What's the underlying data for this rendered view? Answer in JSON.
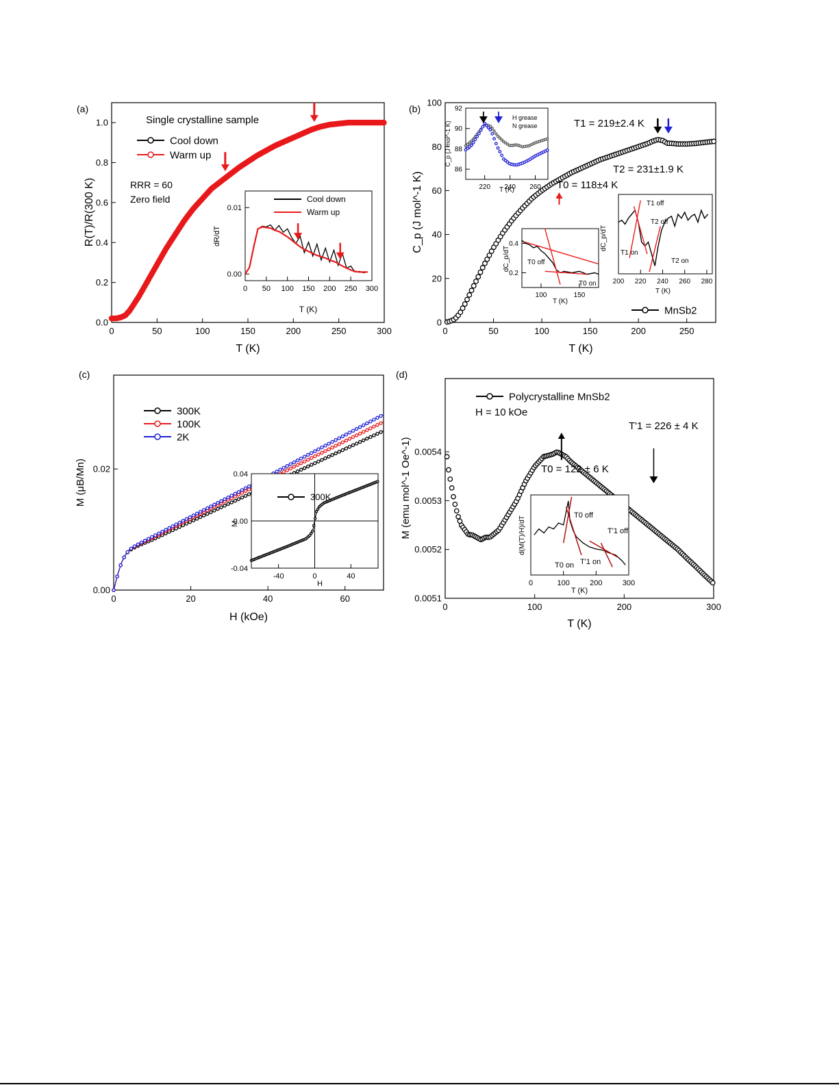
{
  "colors": {
    "black": "#000000",
    "red": "#e8191b",
    "blue": "#1f1fd6",
    "darkred": "#b01010"
  },
  "chart_data": [
    {
      "panel": "(a)",
      "type": "line",
      "title": "Single crystalline sample",
      "xlabel": "T (K)",
      "ylabel": "R(T)/R(300 K)",
      "xlim": [
        0,
        300
      ],
      "ylim": [
        0,
        1.1
      ],
      "xticks": [
        "0",
        "50",
        "100",
        "150",
        "200",
        "250",
        "300"
      ],
      "yticks": [
        "0.0",
        "0.2",
        "0.4",
        "0.6",
        "0.8",
        "1.0"
      ],
      "legend": [
        "Cool down",
        "Warm up"
      ],
      "annotations": [
        "RRR = 60",
        "Zero field"
      ],
      "arrows_T": [
        125,
        223
      ],
      "series": [
        {
          "name": "Cool down",
          "color": "#000000",
          "x": [
            0,
            5,
            10,
            15,
            20,
            30,
            40,
            50,
            60,
            70,
            80,
            90,
            100,
            110,
            120,
            130,
            140,
            150,
            160,
            170,
            180,
            190,
            200,
            210,
            220,
            230,
            240,
            250,
            260,
            270,
            280,
            290,
            300
          ],
          "y": [
            0.02,
            0.02,
            0.025,
            0.035,
            0.06,
            0.13,
            0.21,
            0.29,
            0.37,
            0.44,
            0.51,
            0.57,
            0.62,
            0.67,
            0.71,
            0.745,
            0.78,
            0.81,
            0.84,
            0.865,
            0.89,
            0.91,
            0.93,
            0.95,
            0.97,
            0.985,
            0.995,
            1.0,
            1.0,
            1.005,
            1.005,
            1.005,
            1.005
          ]
        },
        {
          "name": "Warm up",
          "color": "#e8191b",
          "x": [
            0,
            5,
            10,
            15,
            20,
            30,
            40,
            50,
            60,
            70,
            80,
            90,
            100,
            110,
            120,
            130,
            140,
            150,
            160,
            170,
            180,
            190,
            200,
            210,
            220,
            230,
            240,
            250,
            260,
            270,
            280,
            290,
            300
          ],
          "y": [
            0.02,
            0.02,
            0.025,
            0.035,
            0.06,
            0.13,
            0.21,
            0.29,
            0.37,
            0.44,
            0.51,
            0.57,
            0.62,
            0.67,
            0.705,
            0.74,
            0.775,
            0.805,
            0.835,
            0.86,
            0.885,
            0.905,
            0.925,
            0.945,
            0.965,
            0.98,
            0.99,
            0.995,
            1.0,
            1.0,
            1.0,
            1.0,
            1.0
          ]
        }
      ],
      "inset": {
        "xlabel": "T (K)",
        "ylabel": "dR/dT",
        "xticks": [
          "0",
          "50",
          "100",
          "150",
          "200",
          "250",
          "300"
        ],
        "yticks": [
          "0.00",
          "0.01"
        ],
        "xlim": [
          0,
          300
        ],
        "ylim": [
          -0.001,
          0.0125
        ],
        "legend": [
          "Cool down",
          "Warm up"
        ],
        "arrows_T": [
          125,
          225
        ],
        "series": [
          {
            "name": "Cool down",
            "x": [
              0,
              10,
              20,
              30,
              40,
              50,
              60,
              70,
              80,
              90,
              100,
              110,
              120,
              130,
              140,
              150,
              160,
              170,
              180,
              190,
              200,
              210,
              220,
              230,
              240,
              250,
              260,
              270,
              280,
              290
            ],
            "y": [
              0.0,
              0.001,
              0.004,
              0.0068,
              0.0072,
              0.0071,
              0.0074,
              0.0066,
              0.0073,
              0.0063,
              0.0068,
              0.0055,
              0.0046,
              0.0057,
              0.0032,
              0.0048,
              0.0027,
              0.0045,
              0.0021,
              0.0039,
              0.0018,
              0.0036,
              0.0013,
              0.0031,
              0.0009,
              0.0012,
              0.0003,
              0.0004,
              0.0002,
              0.0003
            ]
          },
          {
            "name": "Warm up",
            "x": [
              0,
              10,
              20,
              30,
              40,
              50,
              60,
              70,
              80,
              90,
              100,
              110,
              120,
              130,
              140,
              150,
              160,
              170,
              180,
              190,
              200,
              210,
              220,
              230,
              240,
              250,
              260,
              270,
              280,
              290
            ],
            "y": [
              0.0,
              0.001,
              0.004,
              0.0068,
              0.0071,
              0.007,
              0.0069,
              0.0066,
              0.0064,
              0.006,
              0.0056,
              0.0051,
              0.0046,
              0.0041,
              0.0037,
              0.0034,
              0.0031,
              0.0028,
              0.0026,
              0.0024,
              0.0021,
              0.0019,
              0.0016,
              0.0012,
              0.0009,
              0.0006,
              0.0004,
              0.0003,
              0.0003,
              0.0003
            ]
          }
        ]
      }
    },
    {
      "panel": "(b)",
      "type": "scatter",
      "xlabel": "T (K)",
      "ylabel": "C_p (J mol^-1 K)",
      "xlim": [
        0,
        280
      ],
      "ylim": [
        0,
        100
      ],
      "xticks": [
        "0",
        "50",
        "100",
        "150",
        "200",
        "250"
      ],
      "yticks": [
        "0",
        "20",
        "40",
        "60",
        "80",
        "100"
      ],
      "legend": [
        "MnSb2"
      ],
      "annotations": {
        "T1": "T1 = 219±2.4 K",
        "T2": "T2 = 231±1.9 K",
        "T0": "T0 = 118±4 K"
      },
      "series": [
        {
          "name": "MnSb2",
          "x": [
            2,
            5,
            10,
            15,
            20,
            30,
            40,
            50,
            60,
            70,
            80,
            90,
            100,
            110,
            120,
            130,
            140,
            150,
            160,
            170,
            180,
            190,
            200,
            210,
            215,
            220,
            225,
            230,
            235,
            240,
            250,
            260,
            270,
            280
          ],
          "y": [
            0.2,
            0.5,
            1.5,
            4,
            8,
            17,
            26,
            34,
            41,
            47,
            52,
            56.5,
            60,
            63,
            65.5,
            68,
            70,
            72,
            74,
            75.5,
            77,
            78.5,
            80,
            81.5,
            82.5,
            83.2,
            82.8,
            81.5,
            81.5,
            81.2,
            81.2,
            81.5,
            82,
            82.5
          ]
        }
      ],
      "inset_top": {
        "xlabel": "T (K)",
        "ylabel": "C_p (J mol^-1 K)",
        "xticks": [
          "220",
          "240",
          "260"
        ],
        "yticks": [
          "86",
          "88",
          "90",
          "92"
        ],
        "legend": [
          "H grease",
          "N grease"
        ]
      },
      "inset_mid": {
        "xlabel": "T (K)",
        "ylabel": "dC_p/dT",
        "xticks": [
          "100",
          "150"
        ],
        "yticks": [
          "0.2",
          "0.4"
        ],
        "labels": [
          "T0 off",
          "T0 on"
        ]
      },
      "inset_right": {
        "xlabel": "T (K)",
        "ylabel": "dC_p/dT",
        "xticks": [
          "200",
          "220",
          "240",
          "260",
          "280"
        ],
        "labels": [
          "T1 off",
          "T2 off",
          "T1 on",
          "T2 on"
        ]
      }
    },
    {
      "panel": "(c)",
      "type": "line",
      "xlabel": "H (kOe)",
      "ylabel": "M (μB/Mn)",
      "xlim": [
        0,
        70
      ],
      "ylim": [
        0,
        0.0355
      ],
      "xticks": [
        "0",
        "20",
        "40",
        "60"
      ],
      "yticks": [
        "0.00",
        "0.02"
      ],
      "legend": [
        "300K",
        "100K",
        "2K"
      ],
      "series": [
        {
          "name": "300K",
          "color": "#000000",
          "x": [
            0,
            1,
            2,
            3,
            4,
            5,
            7,
            10,
            20,
            30,
            40,
            50,
            60,
            70
          ],
          "y": [
            0,
            0.0025,
            0.0045,
            0.0058,
            0.0065,
            0.0069,
            0.0075,
            0.0083,
            0.0113,
            0.0143,
            0.0173,
            0.0203,
            0.0233,
            0.0263
          ]
        },
        {
          "name": "100K",
          "color": "#e8191b",
          "x": [
            0,
            1,
            2,
            3,
            4,
            5,
            7,
            10,
            20,
            30,
            40,
            50,
            60,
            70
          ],
          "y": [
            0,
            0.0025,
            0.0045,
            0.0058,
            0.0066,
            0.007,
            0.0077,
            0.0086,
            0.0118,
            0.015,
            0.0182,
            0.0214,
            0.0246,
            0.0278
          ]
        },
        {
          "name": "2K",
          "color": "#1f1fd6",
          "x": [
            0,
            1,
            2,
            3,
            4,
            5,
            7,
            10,
            20,
            30,
            40,
            50,
            60,
            70
          ],
          "y": [
            0,
            0.0025,
            0.0045,
            0.0058,
            0.0066,
            0.0071,
            0.0078,
            0.0088,
            0.0121,
            0.0154,
            0.0188,
            0.0222,
            0.0256,
            0.029
          ]
        }
      ],
      "inset": {
        "xlabel": "H",
        "ylabel": "M",
        "legend": [
          "300K"
        ],
        "xticks": [
          "-40",
          "0",
          "40"
        ],
        "yticks": [
          "-0.04",
          "0.00",
          "0.04"
        ]
      }
    },
    {
      "panel": "(d)",
      "type": "scatter",
      "xlabel": "T (K)",
      "ylabel": "M (emu mol^-1 Oe^-1)",
      "xlim": [
        0,
        300
      ],
      "ylim": [
        0.0051,
        0.00555
      ],
      "xticks": [
        "0",
        "100",
        "200",
        "300"
      ],
      "yticks": [
        "0.0051",
        "0.0052",
        "0.0053",
        "0.0054"
      ],
      "legend": [
        "Polycrystalline MnSb2"
      ],
      "annotations": {
        "H": "H = 10 kOe",
        "T1p": "T'1 = 226 ± 4 K",
        "T0": "T0 = 122 ± 6 K"
      },
      "series": [
        {
          "name": "Polycrystalline MnSb2",
          "x": [
            2,
            4,
            6,
            8,
            10,
            14,
            18,
            22,
            26,
            30,
            35,
            40,
            45,
            50,
            60,
            70,
            80,
            90,
            100,
            110,
            120,
            125,
            130,
            135,
            140,
            150,
            160,
            170,
            180,
            190,
            200,
            210,
            220,
            230,
            240,
            250,
            260,
            270,
            280,
            290,
            300
          ],
          "y": [
            0.00539,
            0.00536,
            0.00534,
            0.00532,
            0.0053,
            0.00527,
            0.00525,
            0.00524,
            0.00523,
            0.00523,
            0.005225,
            0.00522,
            0.005225,
            0.005225,
            0.00524,
            0.00527,
            0.0053,
            0.00534,
            0.00537,
            0.00539,
            0.005395,
            0.0054,
            0.005395,
            0.00539,
            0.00538,
            0.005365,
            0.00535,
            0.005335,
            0.00532,
            0.005305,
            0.00529,
            0.005275,
            0.00526,
            0.005245,
            0.00523,
            0.005215,
            0.0052,
            0.005182,
            0.005165,
            0.005147,
            0.00513
          ]
        }
      ],
      "inset": {
        "xlabel": "T (K)",
        "ylabel": "d(M(T)/H)/dT",
        "xticks": [
          "0",
          "100",
          "200",
          "300"
        ],
        "labels": [
          "T0 off",
          "T'1 off",
          "T0 on",
          "T'1 on"
        ]
      }
    }
  ]
}
